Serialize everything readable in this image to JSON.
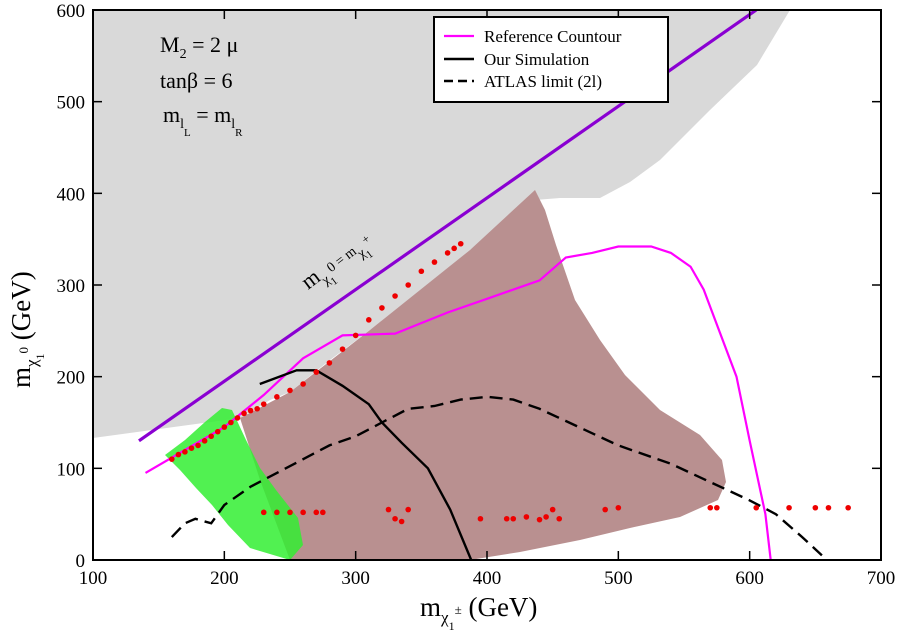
{
  "chart_data": {
    "type": "line",
    "xlabel": "m(chargino1) (GeV)",
    "ylabel": "m(neutralino1) (GeV)",
    "xlim": [
      100,
      700
    ],
    "ylim": [
      0,
      600
    ],
    "x_ticks": [
      "100",
      "200",
      "300",
      "400",
      "500",
      "600",
      "700"
    ],
    "y_ticks": [
      "0",
      "100",
      "200",
      "300",
      "400",
      "500",
      "600"
    ],
    "annotations": {
      "line1_main": "M",
      "line1_sub": "2",
      "line1_rest": " = 2 μ",
      "line2": "tanβ = 6",
      "line3_main": "m",
      "line3_sub1": "l",
      "line3_subsub1": "L",
      "line3_mid": " = m",
      "line3_sub2": "l",
      "line3_subsub2": "R",
      "diag_main1": "m",
      "diag_sub1": "χ",
      "diag_subsub1": "1",
      "diag_mid": "0 = m",
      "diag_sub2": "χ",
      "diag_subsub2": "1",
      "diag_sup": "+",
      "xlabel_main": "m",
      "xlabel_sub": "χ",
      "xlabel_subsub": "1",
      "xlabel_sup": "±",
      "xlabel_unit": " (GeV)",
      "ylabel_main": "m",
      "ylabel_sub": "χ",
      "ylabel_subsub": "1",
      "ylabel_sup": "0",
      "ylabel_unit": " (GeV)"
    },
    "legend": {
      "position": "top-right",
      "entries": [
        {
          "label": "Reference Countour",
          "color": "#ff00ff",
          "style": "solid"
        },
        {
          "label": "Our Simulation",
          "color": "#000000",
          "style": "solid"
        },
        {
          "label": "ATLAS limit (2l)",
          "color": "#000000",
          "style": "dashed"
        }
      ]
    },
    "colors": {
      "excluded_region": "#d9d9d9",
      "brown_region": "#b99090",
      "green_region": "#33ee33",
      "diagonal": "#8a00d2",
      "reference": "#ff00ff",
      "points": "#ee0000"
    },
    "series": [
      {
        "name": "Diagonal m_chi0 = m_chi+",
        "x": [
          135,
          605
        ],
        "y": [
          130,
          600
        ]
      },
      {
        "name": "Reference Countour",
        "x": [
          140,
          170,
          200,
          230,
          260,
          290,
          330,
          370,
          400,
          440,
          460,
          480,
          500,
          525,
          540,
          555,
          565,
          590,
          600,
          612,
          616
        ],
        "y": [
          95,
          120,
          145,
          180,
          220,
          245,
          247,
          270,
          285,
          305,
          330,
          335,
          342,
          342,
          335,
          320,
          295,
          200,
          130,
          50,
          0
        ]
      },
      {
        "name": "Our Simulation",
        "x": [
          227,
          255,
          270,
          290,
          310,
          320,
          335,
          355,
          372,
          388
        ],
        "y": [
          192,
          207,
          207,
          190,
          170,
          150,
          128,
          100,
          55,
          0
        ]
      },
      {
        "name": "ATLAS limit (2l)",
        "x": [
          160,
          170,
          178,
          190,
          200,
          220,
          240,
          260,
          280,
          300,
          320,
          340,
          360,
          380,
          400,
          420,
          440,
          470,
          500,
          540,
          570,
          600,
          620,
          640,
          655
        ],
        "y": [
          25,
          40,
          45,
          40,
          60,
          80,
          95,
          110,
          125,
          135,
          150,
          165,
          168,
          175,
          178,
          175,
          165,
          145,
          125,
          105,
          85,
          65,
          50,
          25,
          5
        ]
      },
      {
        "name": "Scatter points (red)",
        "x": [
          160,
          165,
          170,
          175,
          180,
          185,
          190,
          195,
          200,
          205,
          210,
          215,
          220,
          225,
          230,
          240,
          250,
          260,
          270,
          280,
          290,
          300,
          310,
          320,
          330,
          340,
          350,
          360,
          370,
          375,
          380,
          230,
          240,
          250,
          260,
          270,
          275,
          325,
          330,
          335,
          340,
          395,
          415,
          420,
          430,
          440,
          445,
          450,
          455,
          490,
          500,
          570,
          575,
          605,
          630,
          650,
          660,
          675
        ],
        "y": [
          110,
          115,
          118,
          122,
          125,
          130,
          135,
          140,
          145,
          150,
          155,
          160,
          163,
          165,
          170,
          178,
          185,
          192,
          205,
          215,
          230,
          245,
          262,
          275,
          288,
          300,
          315,
          325,
          335,
          340,
          345,
          52,
          52,
          52,
          52,
          52,
          52,
          55,
          45,
          42,
          55,
          45,
          45,
          45,
          47,
          44,
          47,
          55,
          45,
          55,
          57,
          57,
          57,
          57,
          57,
          57,
          57,
          57
        ]
      }
    ]
  }
}
